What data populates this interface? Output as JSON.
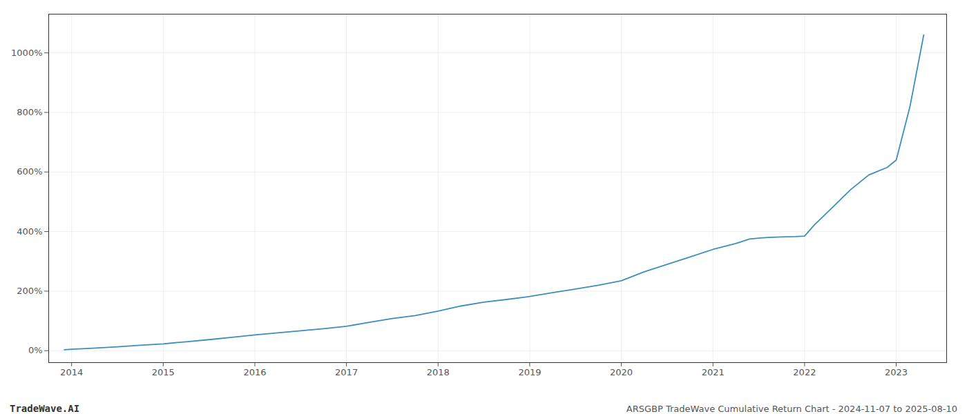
{
  "chart_data": {
    "type": "line",
    "title": "ARSGBP TradeWave Cumulative Return Chart - 2024-11-07 to 2025-08-10",
    "annotations": [
      "TradeWave.AI"
    ],
    "color": "#3d8eb9",
    "grid": true,
    "xlim": [
      2013.75,
      2023.55
    ],
    "xticks": [
      2014,
      2015,
      2016,
      2017,
      2018,
      2019,
      2020,
      2021,
      2022,
      2023
    ],
    "ylim": [
      -40,
      1130
    ],
    "yticks": [
      {
        "value": 0,
        "label": "0%"
      },
      {
        "value": 200,
        "label": "200%"
      },
      {
        "value": 400,
        "label": "400%"
      },
      {
        "value": 600,
        "label": "600%"
      },
      {
        "value": 800,
        "label": "800%"
      },
      {
        "value": 1000,
        "label": "1000%"
      }
    ],
    "x": [
      2013.92,
      2014.0,
      2014.2,
      2014.5,
      2014.75,
      2015.0,
      2015.25,
      2015.5,
      2015.75,
      2016.0,
      2016.25,
      2016.5,
      2016.75,
      2017.0,
      2017.25,
      2017.5,
      2017.75,
      2018.0,
      2018.25,
      2018.5,
      2018.75,
      2019.0,
      2019.25,
      2019.5,
      2019.75,
      2020.0,
      2020.25,
      2020.5,
      2020.75,
      2021.0,
      2021.25,
      2021.4,
      2021.5,
      2021.6,
      2021.75,
      2021.9,
      2022.0,
      2022.1,
      2022.3,
      2022.5,
      2022.7,
      2022.9,
      2023.0,
      2023.15,
      2023.3
    ],
    "values": [
      3,
      5,
      8,
      13,
      18,
      23,
      30,
      37,
      45,
      53,
      60,
      67,
      74,
      82,
      95,
      108,
      118,
      133,
      150,
      163,
      172,
      182,
      195,
      207,
      220,
      235,
      265,
      290,
      315,
      340,
      360,
      375,
      378,
      380,
      382,
      383,
      385,
      420,
      480,
      540,
      590,
      615,
      640,
      820,
      1060
    ]
  }
}
